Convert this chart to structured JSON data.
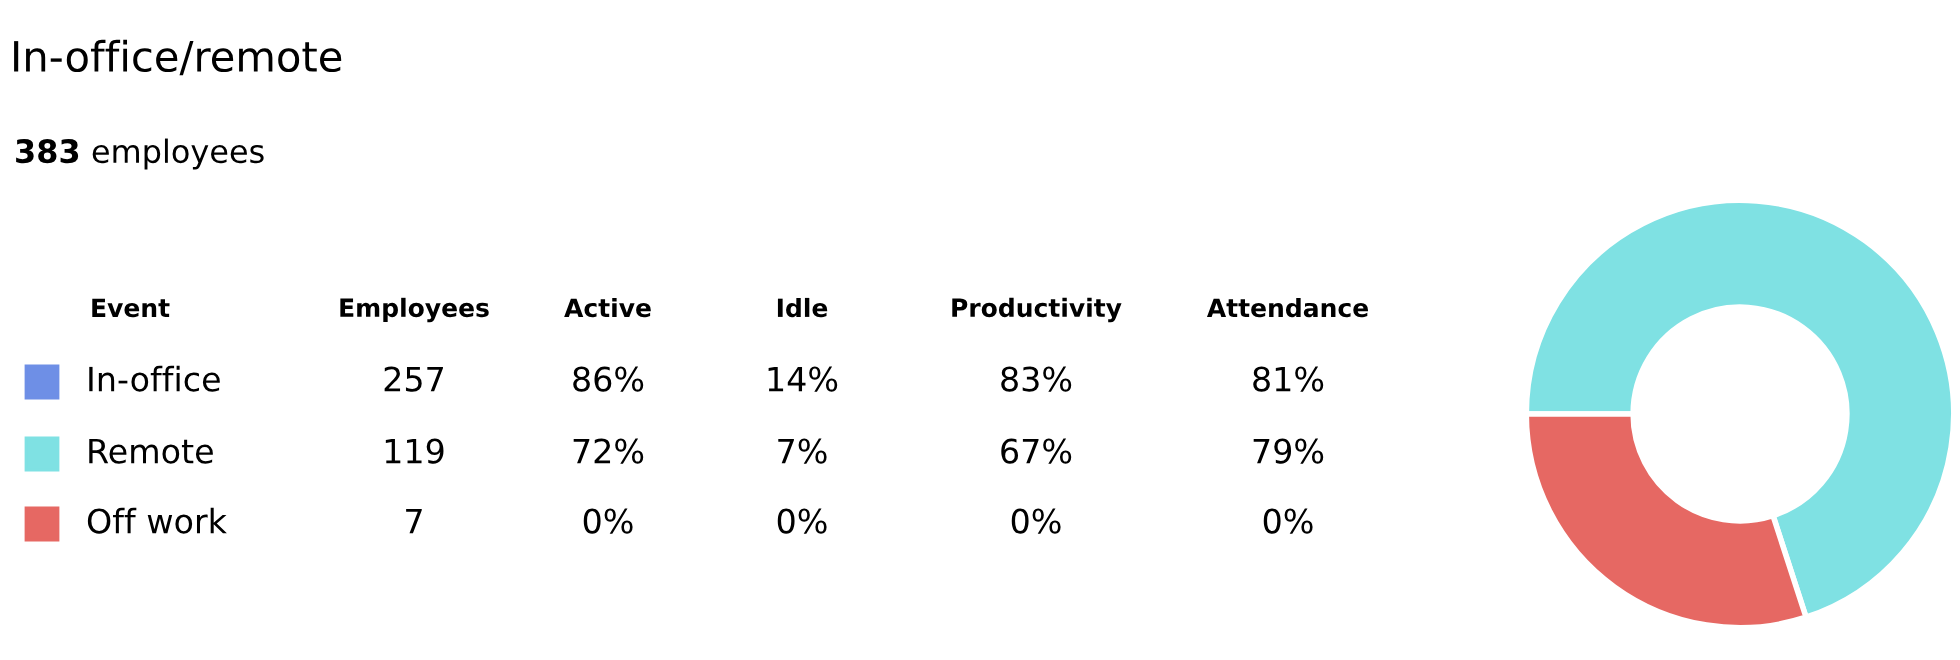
{
  "chart_data": [
    {
      "type": "other",
      "title": "In-office/remote",
      "subtitle": "383 employees",
      "categories": [
        "Event",
        "Employees",
        "Active",
        "Idle",
        "Productivity",
        "Attendance"
      ],
      "annotations": [
        [
          "In-office",
          "257",
          "86%",
          "14%",
          "83%",
          "81%"
        ],
        [
          "Remote",
          "119",
          "72%",
          "7%",
          "67%",
          "79%"
        ],
        [
          "Off work",
          "7",
          "0%",
          "0%",
          "0%",
          "0%"
        ]
      ],
      "colors": [
        "#6e8fe6",
        "#7fe1e3",
        "#e66863"
      ]
    },
    {
      "type": "donut",
      "categories": [
        null,
        null
      ],
      "values": [
        70,
        30
      ],
      "colors": [
        "#7fe1e3",
        "#e66863"
      ]
    }
  ]
}
